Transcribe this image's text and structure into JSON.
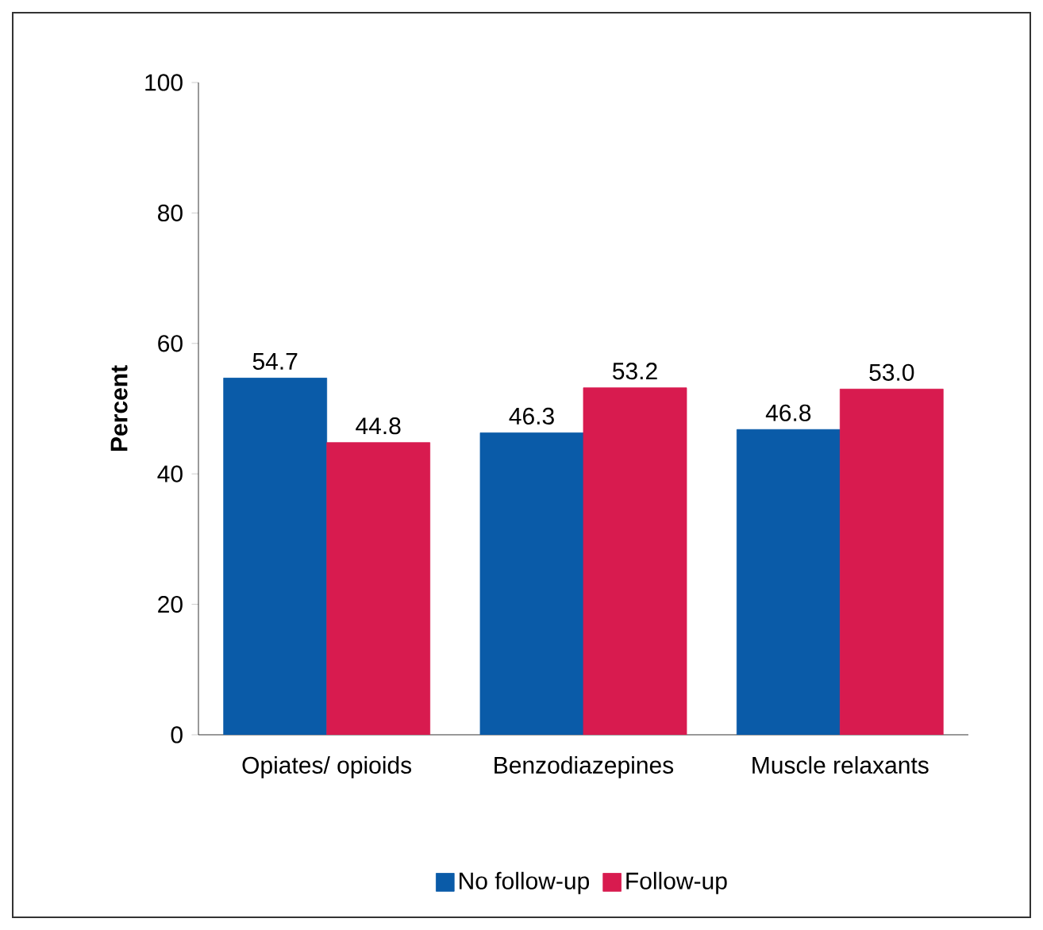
{
  "chart_data": {
    "type": "bar",
    "ylabel": "Percent",
    "categories": [
      "Opiates/ opioids",
      "Benzodiazepines",
      "Muscle relaxants"
    ],
    "series": [
      {
        "name": "No follow-up",
        "color": "#0a5ba8",
        "values": [
          54.7,
          46.3,
          46.8
        ],
        "value_labels": [
          "54.7",
          "46.3",
          "46.8"
        ]
      },
      {
        "name": "Follow-up",
        "color": "#d81b4f",
        "values": [
          44.8,
          53.2,
          53.0
        ],
        "value_labels": [
          "44.8",
          "53.2",
          "53.0"
        ]
      }
    ],
    "ylim": [
      0,
      100
    ],
    "yticks": [
      0,
      20,
      40,
      60,
      80,
      100
    ],
    "legend": "bottom"
  }
}
